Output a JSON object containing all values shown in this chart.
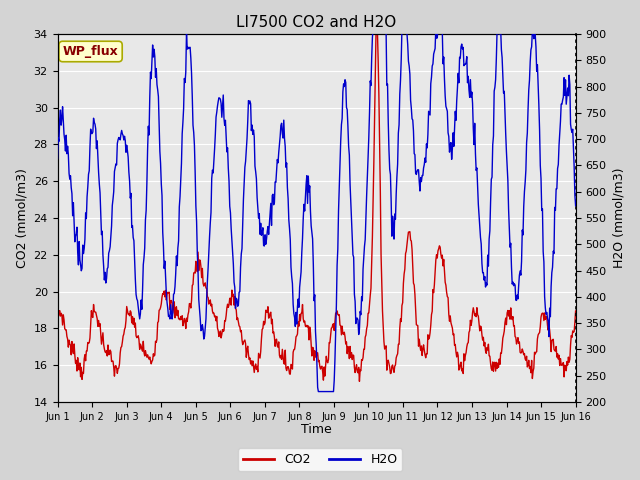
{
  "title": "LI7500 CO2 and H2O",
  "xlabel": "Time",
  "ylabel_left": "CO2 (mmol/m3)",
  "ylabel_right": "H2O (mmol/m3)",
  "co2_ylim": [
    14,
    34
  ],
  "h2o_ylim": [
    200,
    900
  ],
  "co2_yticks": [
    14,
    16,
    18,
    20,
    22,
    24,
    26,
    28,
    30,
    32,
    34
  ],
  "h2o_yticks": [
    200,
    250,
    300,
    350,
    400,
    450,
    500,
    550,
    600,
    650,
    700,
    750,
    800,
    850,
    900
  ],
  "xtick_labels": [
    "Jun 1",
    "Jun 2",
    "Jun 3",
    "Jun 4",
    "Jun 5",
    "Jun 6",
    "Jun 7",
    "Jun 8",
    "Jun 9",
    "Jun 10",
    "Jun 11",
    "Jun 12",
    "Jun 13",
    "Jun 14",
    "Jun 15",
    "Jun 16"
  ],
  "co2_color": "#cc0000",
  "h2o_color": "#0000cc",
  "fig_facecolor": "#d4d4d4",
  "plot_bg_color": "#e8e8e8",
  "annotation_text": "WP_flux",
  "annotation_bbox_facecolor": "#ffffcc",
  "annotation_bbox_edgecolor": "#aaaa00",
  "annotation_text_color": "#880000",
  "legend_co2": "CO2",
  "legend_h2o": "H2O",
  "title_fontsize": 11,
  "axis_label_fontsize": 9,
  "tick_fontsize": 8
}
